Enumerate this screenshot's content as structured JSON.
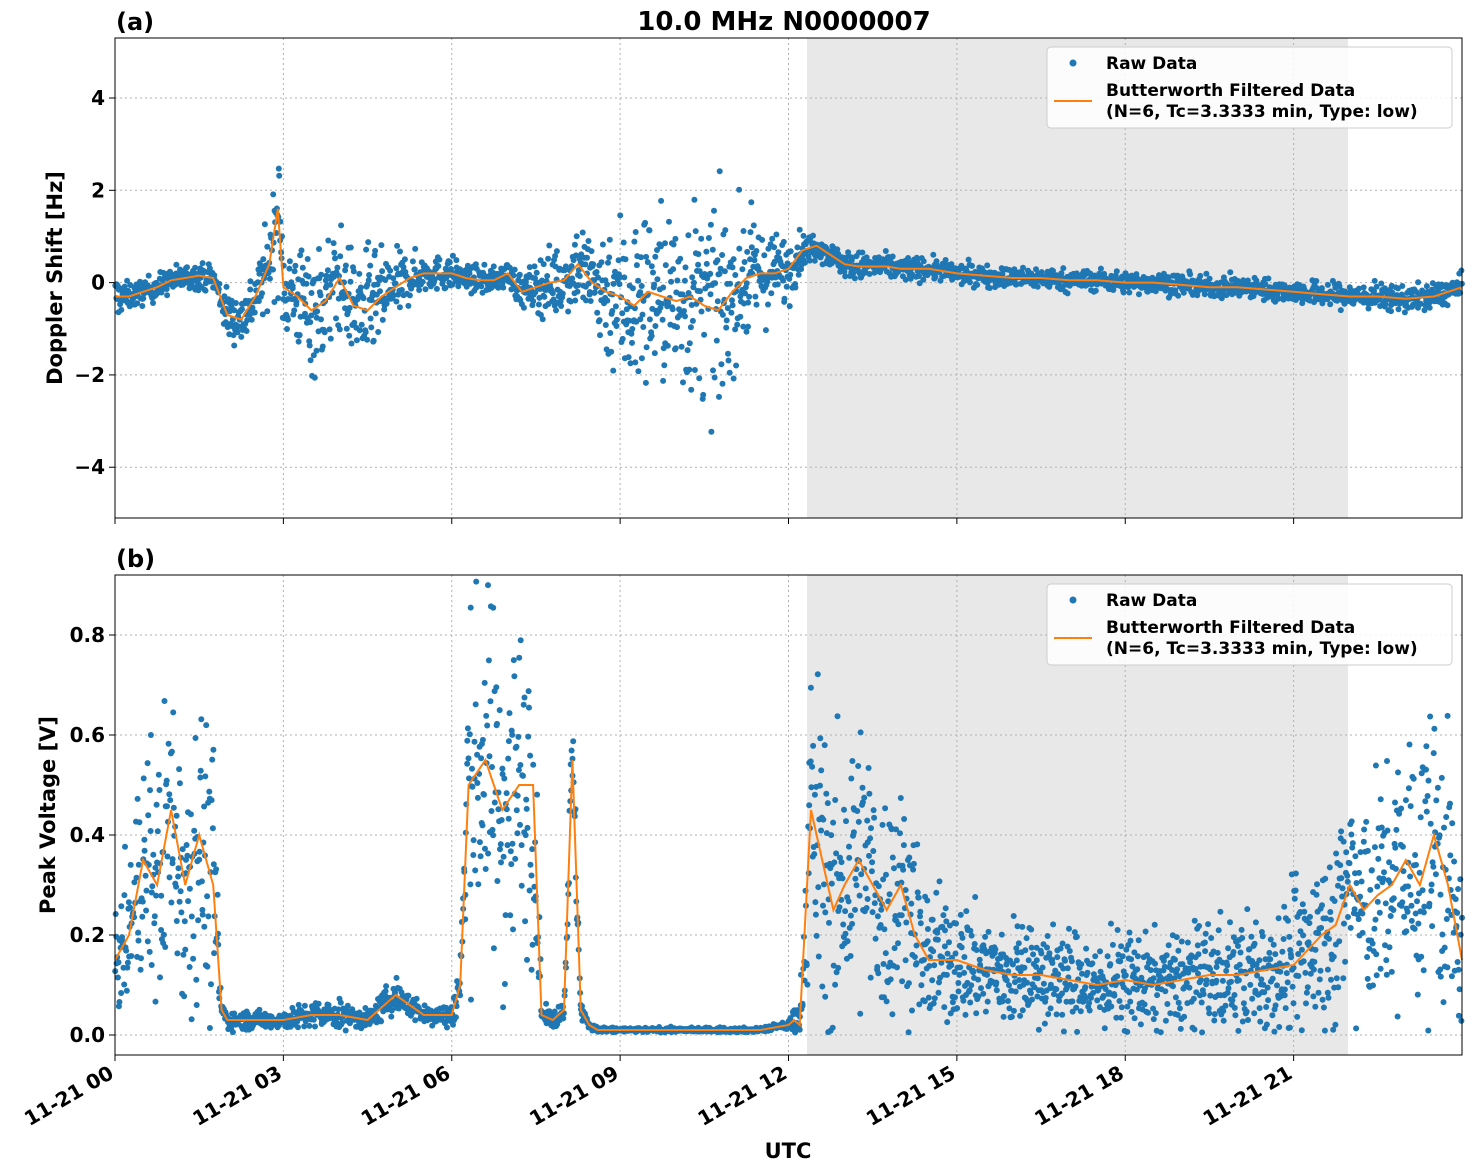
{
  "title": "10.0 MHz N0000007",
  "colors": {
    "raw": "#1f77b4",
    "filtered": "#ff7f0e",
    "shade": "#e8e8e8",
    "grid": "#b0b0b0"
  },
  "legend": {
    "raw_label": "Raw Data",
    "filtered_label_line1": "Butterworth Filtered Data",
    "filtered_label_line2": "(N=6, Tc=3.3333 min, Type: low)",
    "placement": "top-right"
  },
  "xlabel": "UTC",
  "chart_data": [
    {
      "type": "scatter",
      "panel_label": "(a)",
      "title": "10.0 MHz N0000007",
      "ylabel": "Doppler Shift [Hz]",
      "x_unit": "hours UTC on 11-21",
      "xlim": [
        0,
        24
      ],
      "ylim": [
        -5.1,
        5.3
      ],
      "yticks": [
        -4,
        -2,
        0,
        2,
        4
      ],
      "ytick_labels": [
        "−4",
        "−2",
        "0",
        "2",
        "4"
      ],
      "xticks": [
        0,
        3,
        6,
        9,
        12,
        15,
        18,
        21
      ],
      "xtick_labels": [
        "11-21 00",
        "11-21 03",
        "11-21 06",
        "11-21 09",
        "11-21 12",
        "11-21 15",
        "11-21 18",
        "11-21 21"
      ],
      "shaded_x": [
        12.33,
        21.97
      ],
      "grid": true,
      "series": [
        {
          "name": "Raw Data",
          "style": "points",
          "x": [
            0,
            0.25,
            0.5,
            0.75,
            1,
            1.25,
            1.5,
            1.75,
            2,
            2.25,
            2.5,
            2.75,
            2.9,
            3,
            3.25,
            3.5,
            3.75,
            4,
            4.25,
            4.5,
            4.75,
            5,
            5.25,
            5.5,
            5.75,
            6,
            6.25,
            6.5,
            6.75,
            7,
            7.25,
            7.5,
            7.75,
            8,
            8.25,
            8.5,
            8.75,
            9,
            9.25,
            9.5,
            9.75,
            10,
            10.25,
            10.5,
            10.75,
            11,
            11.25,
            11.5,
            11.75,
            12,
            12.25,
            12.5,
            12.75,
            13,
            13.25,
            13.5,
            13.75,
            14,
            14.5,
            15,
            15.5,
            16,
            16.5,
            17,
            17.5,
            18,
            18.5,
            19,
            19.5,
            20,
            20.5,
            21,
            21.5,
            22,
            22.5,
            23,
            23.5,
            24
          ],
          "center": [
            -0.3,
            -0.3,
            -0.2,
            -0.1,
            0.05,
            0.1,
            0.15,
            0.1,
            -0.7,
            -0.8,
            -0.3,
            0.4,
            1.6,
            -0.1,
            -0.3,
            -0.6,
            -0.4,
            0.1,
            -0.5,
            -0.6,
            -0.3,
            -0.1,
            0.1,
            0.2,
            0.2,
            0.2,
            0.1,
            0.05,
            0.05,
            0.2,
            -0.2,
            -0.1,
            0.0,
            0.05,
            0.4,
            0.0,
            -0.2,
            -0.3,
            -0.5,
            -0.2,
            -0.3,
            -0.4,
            -0.3,
            -0.5,
            -0.6,
            -0.2,
            0.1,
            0.2,
            0.2,
            0.3,
            0.7,
            0.8,
            0.6,
            0.4,
            0.35,
            0.35,
            0.35,
            0.3,
            0.3,
            0.2,
            0.15,
            0.1,
            0.1,
            0.05,
            0.05,
            0.0,
            0.0,
            -0.05,
            -0.1,
            -0.1,
            -0.15,
            -0.2,
            -0.25,
            -0.3,
            -0.3,
            -0.35,
            -0.3,
            -0.1
          ],
          "spread": [
            0.5,
            0.3,
            0.3,
            0.3,
            0.3,
            0.3,
            0.3,
            0.3,
            0.6,
            0.6,
            0.7,
            1.0,
            1.6,
            1.2,
            1.2,
            1.6,
            1.4,
            1.2,
            1.2,
            1.4,
            1.0,
            0.8,
            0.6,
            0.4,
            0.4,
            0.4,
            0.3,
            0.3,
            0.3,
            0.3,
            0.4,
            0.6,
            0.8,
            0.8,
            1.0,
            1.2,
            1.6,
            2.0,
            2.2,
            2.0,
            2.0,
            2.2,
            2.3,
            2.2,
            2.3,
            1.8,
            1.5,
            1.2,
            0.9,
            0.8,
            0.4,
            0.3,
            0.3,
            0.3,
            0.35,
            0.3,
            0.3,
            0.3,
            0.25,
            0.25,
            0.25,
            0.25,
            0.25,
            0.25,
            0.25,
            0.25,
            0.25,
            0.25,
            0.25,
            0.25,
            0.25,
            0.25,
            0.3,
            0.3,
            0.3,
            0.3,
            0.3,
            0.3
          ]
        },
        {
          "name": "Butterworth Filtered Data (N=6, Tc=3.3333 min, Type: low)",
          "style": "line",
          "x": [
            0,
            0.25,
            0.5,
            0.75,
            1,
            1.25,
            1.5,
            1.75,
            2,
            2.25,
            2.5,
            2.75,
            2.9,
            3,
            3.25,
            3.5,
            3.75,
            4,
            4.25,
            4.5,
            4.75,
            5,
            5.25,
            5.5,
            5.75,
            6,
            6.25,
            6.5,
            6.75,
            7,
            7.25,
            7.5,
            7.75,
            8,
            8.25,
            8.5,
            8.75,
            9,
            9.25,
            9.5,
            9.75,
            10,
            10.25,
            10.5,
            10.75,
            11,
            11.25,
            11.5,
            11.75,
            12,
            12.25,
            12.5,
            12.75,
            13,
            13.25,
            13.5,
            13.75,
            14,
            14.5,
            15,
            15.5,
            16,
            16.5,
            17,
            17.5,
            18,
            18.5,
            19,
            19.5,
            20,
            20.5,
            21,
            21.5,
            22,
            22.5,
            23,
            23.5,
            24
          ],
          "y": [
            -0.3,
            -0.3,
            -0.2,
            -0.1,
            0.05,
            0.1,
            0.15,
            0.1,
            -0.7,
            -0.8,
            -0.3,
            0.4,
            1.6,
            -0.1,
            -0.3,
            -0.6,
            -0.4,
            0.1,
            -0.5,
            -0.6,
            -0.3,
            -0.1,
            0.1,
            0.2,
            0.2,
            0.2,
            0.1,
            0.05,
            0.05,
            0.2,
            -0.2,
            -0.1,
            0.0,
            0.05,
            0.4,
            0.0,
            -0.2,
            -0.3,
            -0.5,
            -0.2,
            -0.3,
            -0.4,
            -0.3,
            -0.5,
            -0.6,
            -0.2,
            0.1,
            0.2,
            0.2,
            0.3,
            0.7,
            0.8,
            0.6,
            0.4,
            0.35,
            0.35,
            0.35,
            0.3,
            0.3,
            0.2,
            0.15,
            0.1,
            0.1,
            0.05,
            0.05,
            0.0,
            0.0,
            -0.05,
            -0.1,
            -0.1,
            -0.15,
            -0.2,
            -0.25,
            -0.3,
            -0.3,
            -0.35,
            -0.3,
            -0.1
          ]
        }
      ]
    },
    {
      "type": "scatter",
      "panel_label": "(b)",
      "ylabel": "Peak Voltage [V]",
      "x_unit": "hours UTC on 11-21",
      "xlim": [
        0,
        24
      ],
      "ylim": [
        -0.04,
        0.92
      ],
      "yticks": [
        0.0,
        0.2,
        0.4,
        0.6,
        0.8
      ],
      "ytick_labels": [
        "0.0",
        "0.2",
        "0.4",
        "0.6",
        "0.8"
      ],
      "xticks": [
        0,
        3,
        6,
        9,
        12,
        15,
        18,
        21
      ],
      "xtick_labels": [
        "11-21 00",
        "11-21 03",
        "11-21 06",
        "11-21 09",
        "11-21 12",
        "11-21 15",
        "11-21 18",
        "11-21 21"
      ],
      "shaded_x": [
        12.33,
        21.97
      ],
      "grid": true,
      "series": [
        {
          "name": "Raw Data",
          "style": "points",
          "x": [
            0,
            0.25,
            0.5,
            0.75,
            1,
            1.25,
            1.5,
            1.75,
            1.9,
            2,
            2.5,
            3,
            3.5,
            4,
            4.5,
            5,
            5.5,
            6,
            6.15,
            6.3,
            6.6,
            6.9,
            7.2,
            7.45,
            7.6,
            7.8,
            8.0,
            8.15,
            8.3,
            8.45,
            8.6,
            9,
            10,
            11,
            11.5,
            12,
            12.1,
            12.2,
            12.4,
            12.6,
            12.8,
            13,
            13.25,
            13.5,
            13.75,
            14,
            14.25,
            14.5,
            15,
            15.5,
            16,
            16.5,
            17,
            17.5,
            18,
            18.5,
            19,
            19.5,
            20,
            20.5,
            21,
            21.25,
            21.5,
            21.75,
            22,
            22.25,
            22.5,
            22.75,
            23,
            23.25,
            23.5,
            23.75,
            24
          ],
          "center": [
            0.15,
            0.2,
            0.35,
            0.3,
            0.45,
            0.3,
            0.4,
            0.3,
            0.05,
            0.03,
            0.03,
            0.03,
            0.04,
            0.04,
            0.03,
            0.08,
            0.04,
            0.04,
            0.1,
            0.5,
            0.55,
            0.45,
            0.5,
            0.5,
            0.04,
            0.03,
            0.05,
            0.55,
            0.05,
            0.02,
            0.01,
            0.01,
            0.01,
            0.01,
            0.01,
            0.02,
            0.03,
            0.02,
            0.45,
            0.35,
            0.25,
            0.3,
            0.35,
            0.3,
            0.25,
            0.3,
            0.2,
            0.15,
            0.15,
            0.13,
            0.12,
            0.12,
            0.11,
            0.1,
            0.11,
            0.1,
            0.11,
            0.12,
            0.12,
            0.13,
            0.14,
            0.17,
            0.2,
            0.22,
            0.3,
            0.25,
            0.28,
            0.3,
            0.35,
            0.3,
            0.4,
            0.3,
            0.15
          ],
          "spread": [
            0.12,
            0.15,
            0.25,
            0.3,
            0.3,
            0.3,
            0.3,
            0.3,
            0.02,
            0.02,
            0.02,
            0.02,
            0.03,
            0.03,
            0.02,
            0.04,
            0.02,
            0.03,
            0.08,
            0.35,
            0.35,
            0.4,
            0.35,
            0.35,
            0.02,
            0.02,
            0.02,
            0.15,
            0.02,
            0.01,
            0.01,
            0.005,
            0.005,
            0.005,
            0.005,
            0.01,
            0.04,
            0.02,
            0.35,
            0.35,
            0.3,
            0.3,
            0.32,
            0.28,
            0.25,
            0.25,
            0.2,
            0.15,
            0.13,
            0.12,
            0.12,
            0.11,
            0.11,
            0.1,
            0.11,
            0.1,
            0.11,
            0.12,
            0.13,
            0.14,
            0.15,
            0.17,
            0.2,
            0.2,
            0.25,
            0.25,
            0.25,
            0.25,
            0.3,
            0.3,
            0.35,
            0.3,
            0.15
          ]
        },
        {
          "name": "Butterworth Filtered Data (N=6, Tc=3.3333 min, Type: low)",
          "style": "line",
          "x": [
            0,
            0.25,
            0.5,
            0.75,
            1,
            1.25,
            1.5,
            1.75,
            1.9,
            2,
            2.5,
            3,
            3.5,
            4,
            4.5,
            5,
            5.5,
            6,
            6.15,
            6.3,
            6.6,
            6.9,
            7.2,
            7.45,
            7.6,
            7.8,
            8.0,
            8.15,
            8.3,
            8.45,
            8.6,
            9,
            10,
            11,
            11.5,
            12,
            12.1,
            12.2,
            12.4,
            12.6,
            12.8,
            13,
            13.25,
            13.5,
            13.75,
            14,
            14.25,
            14.5,
            15,
            15.5,
            16,
            16.5,
            17,
            17.5,
            18,
            18.5,
            19,
            19.5,
            20,
            20.5,
            21,
            21.25,
            21.5,
            21.75,
            22,
            22.25,
            22.5,
            22.75,
            23,
            23.25,
            23.5,
            23.75,
            24
          ],
          "y": [
            0.15,
            0.2,
            0.35,
            0.3,
            0.45,
            0.3,
            0.4,
            0.3,
            0.05,
            0.03,
            0.03,
            0.03,
            0.04,
            0.04,
            0.03,
            0.08,
            0.04,
            0.04,
            0.1,
            0.5,
            0.55,
            0.45,
            0.5,
            0.5,
            0.04,
            0.03,
            0.05,
            0.55,
            0.05,
            0.02,
            0.01,
            0.01,
            0.01,
            0.01,
            0.01,
            0.02,
            0.03,
            0.02,
            0.45,
            0.35,
            0.25,
            0.3,
            0.35,
            0.3,
            0.25,
            0.3,
            0.2,
            0.15,
            0.15,
            0.13,
            0.12,
            0.12,
            0.11,
            0.1,
            0.11,
            0.1,
            0.11,
            0.12,
            0.12,
            0.13,
            0.14,
            0.17,
            0.2,
            0.22,
            0.3,
            0.25,
            0.28,
            0.3,
            0.35,
            0.3,
            0.4,
            0.3,
            0.15
          ]
        }
      ]
    }
  ]
}
